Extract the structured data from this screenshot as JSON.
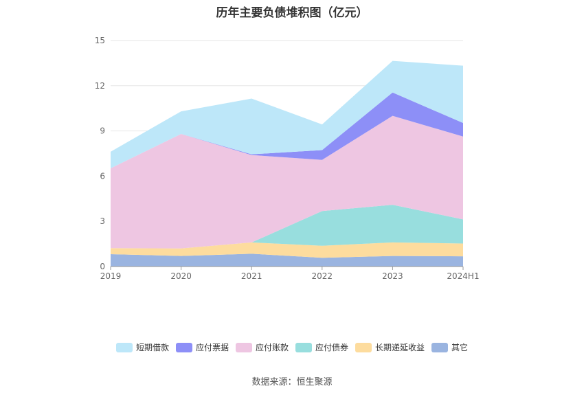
{
  "chart_data": {
    "type": "area",
    "stacked": true,
    "title": "历年主要负债堆积图（亿元）",
    "x": [
      "2019",
      "2020",
      "2021",
      "2022",
      "2023",
      "2024H1"
    ],
    "yticks": [
      "0",
      "3",
      "6",
      "9",
      "12",
      "15"
    ],
    "ylim": [
      0,
      15
    ],
    "grid": true,
    "legend_position": "bottom",
    "series": [
      {
        "name": "其它",
        "color": "#9ab4e0",
        "values": [
          0.82,
          0.7,
          0.85,
          0.58,
          0.7,
          0.68
        ]
      },
      {
        "name": "长期递延收益",
        "color": "#fddc9e",
        "values": [
          0.4,
          0.5,
          0.75,
          0.8,
          0.9,
          0.85
        ]
      },
      {
        "name": "应付债券",
        "color": "#98dede",
        "values": [
          0.0,
          0.0,
          0.0,
          2.3,
          2.5,
          1.6
        ]
      },
      {
        "name": "应付账款",
        "color": "#eec6e2",
        "values": [
          5.3,
          7.6,
          5.8,
          3.4,
          5.9,
          5.5
        ]
      },
      {
        "name": "应付票据",
        "color": "#8d8ff7",
        "values": [
          0.0,
          0.0,
          0.05,
          0.65,
          1.55,
          0.9
        ]
      },
      {
        "name": "短期借款",
        "color": "#bde7f9",
        "values": [
          1.1,
          1.5,
          3.7,
          1.7,
          2.1,
          3.8
        ]
      }
    ],
    "legend_order": [
      "短期借款",
      "应付票据",
      "应付账款",
      "应付债券",
      "长期递延收益",
      "其它"
    ]
  },
  "source": "数据来源：恒生聚源"
}
